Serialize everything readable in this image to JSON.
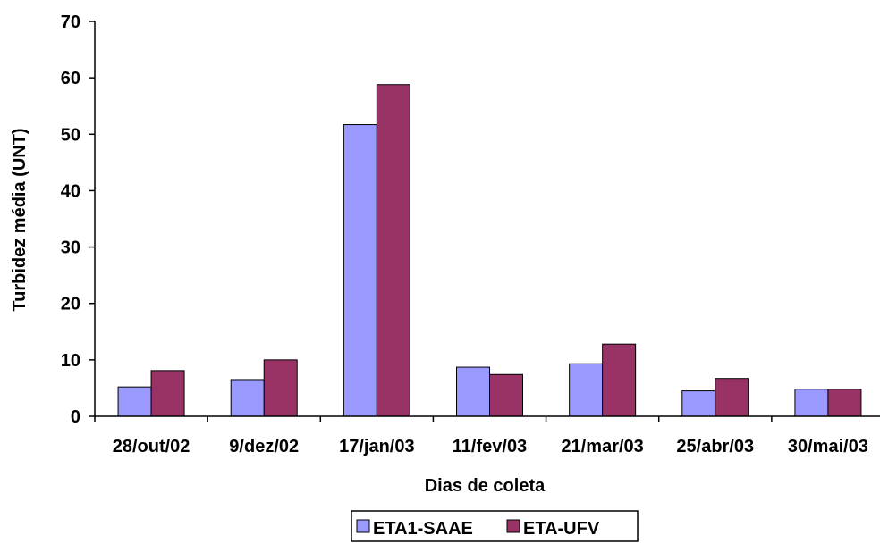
{
  "chart_data": {
    "type": "bar",
    "title": "",
    "xlabel": "Dias de coleta",
    "ylabel": "Turbidez média (UNT)",
    "categories": [
      "28/out/02",
      "9/dez/02",
      "17/jan/03",
      "11/fev/03",
      "21/mar/03",
      "25/abr/03",
      "30/mai/03"
    ],
    "series": [
      {
        "name": "ETA1-SAAE",
        "color": "#9999FF",
        "values": [
          5.2,
          6.5,
          51.7,
          8.7,
          9.3,
          4.5,
          4.8
        ]
      },
      {
        "name": "ETA-UFV",
        "color": "#993366",
        "values": [
          8.1,
          10.0,
          58.8,
          7.4,
          12.8,
          6.7,
          4.8
        ]
      }
    ],
    "ylim": [
      0,
      70
    ],
    "yticks": [
      0,
      10,
      20,
      30,
      40,
      50,
      60,
      70
    ],
    "grid": false,
    "legend": "bottom"
  }
}
